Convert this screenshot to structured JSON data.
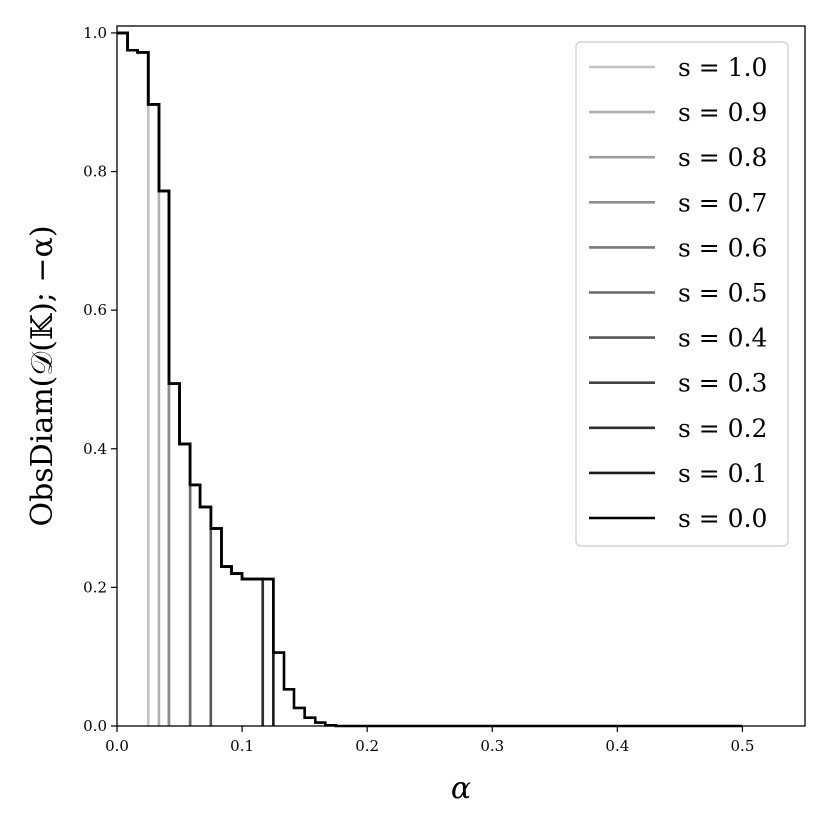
{
  "chart_data": {
    "type": "line",
    "title": "",
    "xlabel": "α",
    "ylabel": "ObsDiam(𝒟(𝕂); −α)",
    "xlim": [
      0.0,
      0.55
    ],
    "ylim": [
      0.0,
      1.01
    ],
    "xticks": [
      0.0,
      0.1,
      0.2,
      0.3,
      0.4,
      0.5
    ],
    "xtick_labels": [
      "0.0",
      "0.1",
      "0.2",
      "0.3",
      "0.4",
      "0.5"
    ],
    "yticks": [
      0.0,
      0.2,
      0.4,
      0.6,
      0.8,
      1.0
    ],
    "ytick_labels": [
      "0.0",
      "0.2",
      "0.4",
      "0.6",
      "0.8",
      "1.0"
    ],
    "grid": false,
    "legend_position": "top-right",
    "step_x": [
      0.0,
      0.0085,
      0.0165,
      0.025,
      0.0335,
      0.0415,
      0.05,
      0.0585,
      0.0665,
      0.075,
      0.0835,
      0.0915,
      0.1,
      0.1085,
      0.1165,
      0.125,
      0.1335,
      0.1415,
      0.15,
      0.1585,
      0.1665,
      0.175,
      0.5
    ],
    "step_y": [
      1.0,
      0.975,
      0.972,
      0.897,
      0.772,
      0.494,
      0.407,
      0.348,
      0.316,
      0.285,
      0.23,
      0.22,
      0.212,
      0.212,
      0.212,
      0.106,
      0.053,
      0.026,
      0.012,
      0.005,
      0.001,
      0.0
    ],
    "series": [
      {
        "name": "s = 1.0",
        "cutoff": 0.025,
        "color": "#c2c2c2"
      },
      {
        "name": "s = 0.9",
        "cutoff": 0.0335,
        "color": "#b0b0b0"
      },
      {
        "name": "s = 0.8",
        "cutoff": 0.0415,
        "color": "#9e9e9e"
      },
      {
        "name": "s = 0.7",
        "cutoff": 0.0415,
        "color": "#8c8c8c"
      },
      {
        "name": "s = 0.6",
        "cutoff": 0.0585,
        "color": "#7a7a7a"
      },
      {
        "name": "s = 0.5",
        "cutoff": 0.0585,
        "color": "#686868"
      },
      {
        "name": "s = 0.4",
        "cutoff": 0.075,
        "color": "#565656"
      },
      {
        "name": "s = 0.3",
        "cutoff": 0.1165,
        "color": "#444444"
      },
      {
        "name": "s = 0.2",
        "cutoff": 0.1165,
        "color": "#2f2f2f"
      },
      {
        "name": "s = 0.1",
        "cutoff": 0.125,
        "color": "#1b1b1b"
      },
      {
        "name": "s = 0.0",
        "cutoff": 0.5,
        "color": "#000000"
      }
    ]
  }
}
